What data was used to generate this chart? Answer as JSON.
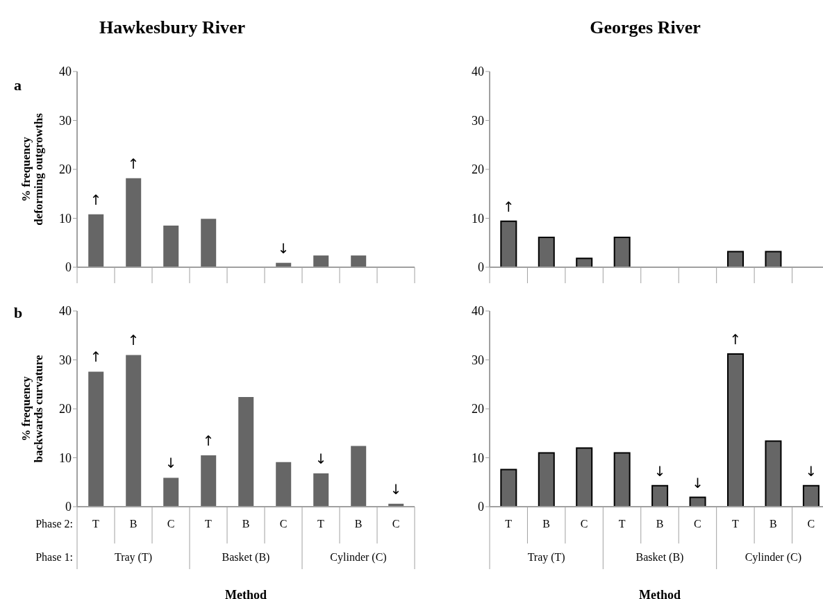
{
  "chart_data": [
    {
      "type": "bar",
      "title": "Hawkesbury River",
      "ylabel": "% frequency\ndeforming outgrowths",
      "annotations": [
        "a"
      ],
      "categories": [
        null,
        null,
        null,
        null,
        null,
        null,
        null,
        null,
        null
      ],
      "values": [
        10.8,
        18.2,
        8.5,
        9.9,
        0,
        0.9,
        2.4,
        2.4,
        0
      ],
      "value_labels": [
        "↑",
        "↑",
        null,
        null,
        null,
        "↓",
        null,
        null,
        null
      ],
      "color": "#666666",
      "ylim": [
        0,
        40
      ],
      "yticks": [
        0,
        10,
        20,
        30,
        40
      ],
      "tick_labels": "y"
    },
    {
      "type": "bar",
      "title": "Georges River",
      "categories": [
        null,
        null,
        null,
        null,
        null,
        null,
        null,
        null,
        null
      ],
      "values": [
        9.4,
        6.1,
        1.8,
        6.1,
        0,
        0,
        3.2,
        3.2,
        0
      ],
      "value_labels": [
        "↑",
        null,
        null,
        null,
        null,
        null,
        null,
        null,
        null
      ],
      "color": "#666666",
      "ylim": [
        0,
        40
      ],
      "yticks": [
        0,
        10,
        20,
        30,
        40
      ],
      "tick_labels": "y"
    },
    {
      "type": "bar",
      "ylabel": "% frequency\nbackwards curvature",
      "xlabel": "Method",
      "annotations": [
        "b",
        "Phase 2:",
        "Phase 1:",
        "Tray (T)",
        "Basket (B)",
        "Cylinder (C)"
      ],
      "categories": [
        "T",
        "B",
        "C",
        "T",
        "B",
        "C",
        "T",
        "B",
        "C"
      ],
      "values": [
        27.6,
        31.0,
        5.9,
        10.5,
        22.4,
        9.1,
        6.8,
        12.4,
        0.6
      ],
      "value_labels": [
        "↑",
        "↑",
        "↓",
        "↑",
        null,
        null,
        "↓",
        null,
        "↓"
      ],
      "color": "#666666",
      "ylim": [
        0,
        40
      ],
      "yticks": [
        0,
        10,
        20,
        30,
        40
      ]
    },
    {
      "type": "bar",
      "xlabel": "Method",
      "annotations": [
        "Tray (T)",
        "Basket (B)",
        "Cylinder (C)"
      ],
      "categories": [
        "T",
        "B",
        "C",
        "T",
        "B",
        "C",
        "T",
        "B",
        "C"
      ],
      "values": [
        7.6,
        11.0,
        12.0,
        11.0,
        4.3,
        1.9,
        31.2,
        13.4,
        4.3
      ],
      "value_labels": [
        null,
        null,
        null,
        null,
        "↓",
        "↓",
        "↑",
        null,
        "↓"
      ],
      "color": "#666666",
      "ylim": [
        0,
        40
      ],
      "yticks": [
        0,
        10,
        20,
        30,
        40
      ]
    }
  ]
}
